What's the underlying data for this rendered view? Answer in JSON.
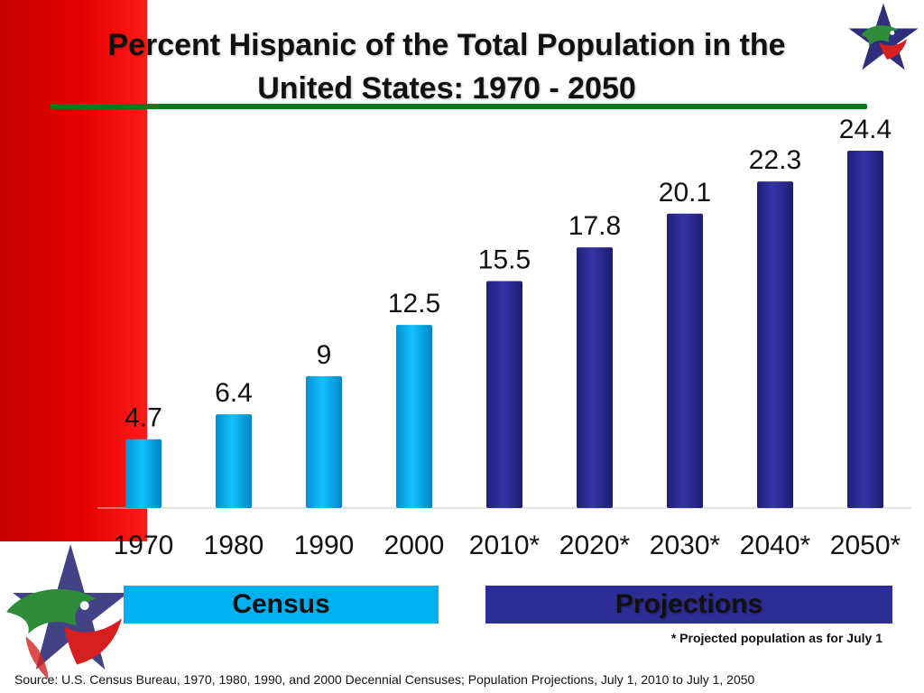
{
  "colors": {
    "census": "#00b0f0",
    "census_dark": "#0088c7",
    "projection": "#2d2d96",
    "projection_dark": "#1a1a6e",
    "rule": "#0a7a1a"
  },
  "chart_data": {
    "type": "bar",
    "title": "Percent Hispanic of the Total Population in the United States: 1970 - 2050",
    "title_line1": "Percent Hispanic of the Total Population in the",
    "title_line2": "United States: 1970 - 2050",
    "categories": [
      "1970",
      "1980",
      "1990",
      "2000",
      "2010*",
      "2020*",
      "2030*",
      "2040*",
      "2050*"
    ],
    "values": [
      4.7,
      6.4,
      9,
      12.5,
      15.5,
      17.8,
      20.1,
      22.3,
      24.4
    ],
    "data_labels": [
      "4.7",
      "6.4",
      "9",
      "12.5",
      "15.5",
      "17.8",
      "20.1",
      "22.3",
      "24.4"
    ],
    "groups": [
      "census",
      "census",
      "census",
      "census",
      "projection",
      "projection",
      "projection",
      "projection",
      "projection"
    ],
    "ylim": [
      0,
      24.4
    ],
    "xlabel": "",
    "ylabel": "",
    "legend": {
      "census": "Census",
      "projection": "Projections"
    }
  },
  "footnote": "* Projected population as for July 1",
  "source": "Source: U.S. Census Bureau, 1970, 1980, 1990, and 2000 Decennial Censuses; Population Projections, July 1, 2010 to July 1, 2050"
}
